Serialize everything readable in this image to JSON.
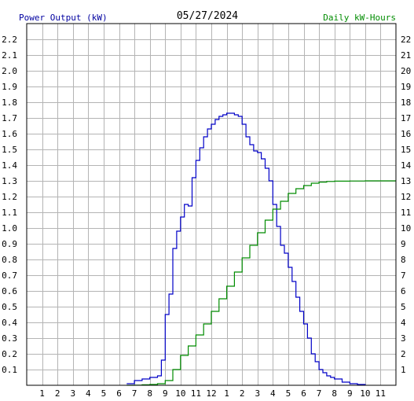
{
  "colors": {
    "background": "#ffffff",
    "grid": "#b4b4b4",
    "power_series": "#0000c8",
    "energy_series": "#008c00",
    "left_axis_text": "#0000a0",
    "right_axis_text": "#008c00"
  },
  "chart_data": {
    "type": "line",
    "title": "05/27/2024",
    "ylabel_left": "Power Output (kW)",
    "ylabel_right": "Daily kW-Hours",
    "x_ticks": [
      "1",
      "2",
      "3",
      "4",
      "5",
      "6",
      "7",
      "8",
      "9",
      "10",
      "11",
      "12",
      "1",
      "2",
      "3",
      "4",
      "5",
      "6",
      "7",
      "8",
      "9",
      "10",
      "11"
    ],
    "y_left_ticks": [
      "0.1",
      "0.2",
      "0.3",
      "0.4",
      "0.5",
      "0.6",
      "0.7",
      "0.8",
      "0.9",
      "1.0",
      "1.1",
      "1.2",
      "1.3",
      "1.4",
      "1.5",
      "1.6",
      "1.7",
      "1.8",
      "1.9",
      "2.0",
      "2.1",
      "2.2"
    ],
    "y_right_ticks": [
      "1",
      "2",
      "3",
      "4",
      "5",
      "6",
      "7",
      "8",
      "9",
      "10",
      "11",
      "12",
      "13",
      "14",
      "15",
      "16",
      "17",
      "18",
      "19",
      "20",
      "21",
      "22"
    ],
    "x_range_hours": [
      0,
      24
    ],
    "y_left_range": [
      0,
      2.3
    ],
    "y_right_range": [
      0,
      23
    ],
    "grid": true,
    "step": true,
    "series": [
      {
        "axis": "left",
        "x": [
          6.5,
          7.0,
          7.5,
          8.0,
          8.5,
          8.75,
          9.0,
          9.25,
          9.5,
          9.75,
          10.0,
          10.25,
          10.5,
          10.75,
          11.0,
          11.25,
          11.5,
          11.75,
          12.0,
          12.25,
          12.5,
          12.75,
          13.0,
          13.25,
          13.5,
          13.75,
          14.0,
          14.25,
          14.5,
          14.75,
          15.0,
          15.25,
          15.5,
          15.75,
          16.0,
          16.25,
          16.5,
          16.75,
          17.0,
          17.25,
          17.5,
          17.75,
          18.0,
          18.25,
          18.5,
          18.75,
          19.0,
          19.25,
          19.5,
          19.75,
          20.0,
          20.5,
          21.0,
          21.5,
          22.0
        ],
        "values": [
          0.01,
          0.03,
          0.04,
          0.05,
          0.06,
          0.16,
          0.45,
          0.58,
          0.87,
          0.98,
          1.07,
          1.15,
          1.14,
          1.32,
          1.43,
          1.51,
          1.58,
          1.63,
          1.66,
          1.69,
          1.71,
          1.72,
          1.73,
          1.73,
          1.72,
          1.71,
          1.66,
          1.58,
          1.53,
          1.49,
          1.48,
          1.44,
          1.38,
          1.3,
          1.15,
          1.01,
          0.89,
          0.84,
          0.75,
          0.66,
          0.56,
          0.47,
          0.39,
          0.3,
          0.2,
          0.15,
          0.1,
          0.08,
          0.06,
          0.05,
          0.04,
          0.02,
          0.01,
          0.005,
          0.0
        ]
      },
      {
        "axis": "right",
        "x": [
          6.5,
          7.0,
          7.5,
          8.0,
          8.5,
          9.0,
          9.5,
          10.0,
          10.5,
          11.0,
          11.5,
          12.0,
          12.5,
          13.0,
          13.5,
          14.0,
          14.5,
          15.0,
          15.5,
          16.0,
          16.5,
          17.0,
          17.5,
          18.0,
          18.5,
          19.0,
          19.5,
          20.0,
          21.0,
          22.0,
          23.0,
          24.0
        ],
        "values": [
          0.0,
          0.01,
          0.03,
          0.05,
          0.1,
          0.3,
          1.0,
          1.9,
          2.5,
          3.2,
          3.9,
          4.7,
          5.5,
          6.3,
          7.2,
          8.1,
          8.9,
          9.7,
          10.5,
          11.2,
          11.7,
          12.2,
          12.5,
          12.7,
          12.85,
          12.92,
          12.96,
          12.98,
          12.99,
          13.0,
          13.0,
          13.0
        ]
      }
    ]
  }
}
